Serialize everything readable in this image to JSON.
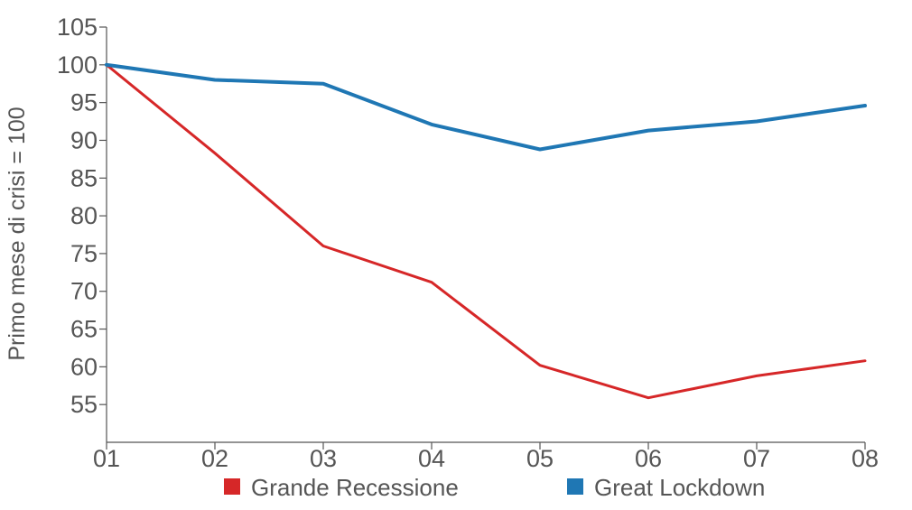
{
  "chart_data": {
    "type": "line",
    "title": "",
    "xlabel": "",
    "ylabel": "Primo mese di crisi = 100",
    "categories": [
      "01",
      "02",
      "03",
      "04",
      "05",
      "06",
      "07",
      "08"
    ],
    "ylim": [
      50,
      105
    ],
    "yticks": [
      55,
      60,
      65,
      70,
      75,
      80,
      85,
      90,
      95,
      100,
      105
    ],
    "grid": false,
    "legend": "bottom",
    "series": [
      {
        "name": "Grande Recessione",
        "color": "#d62728",
        "values": [
          100,
          88.3,
          76.0,
          71.2,
          60.2,
          55.9,
          58.8,
          60.8
        ]
      },
      {
        "name": "Great Lockdown",
        "color": "#1f77b4",
        "values": [
          100,
          98.0,
          97.5,
          92.1,
          88.8,
          91.3,
          92.5,
          94.6
        ]
      }
    ]
  }
}
